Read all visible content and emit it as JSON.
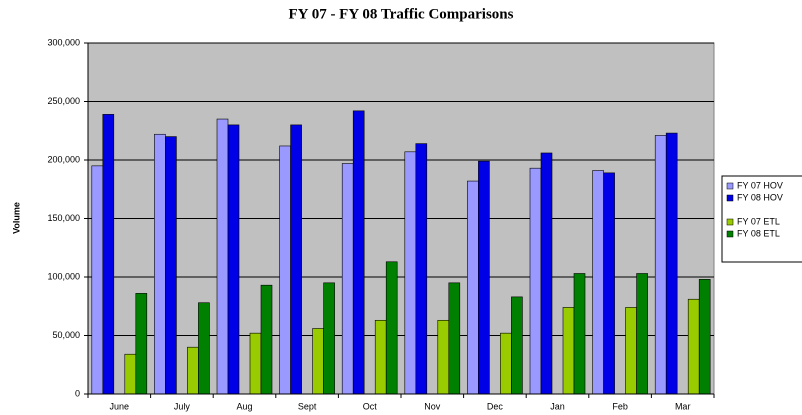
{
  "chart_data": {
    "type": "bar",
    "title": "FY 07 - FY 08 Traffic Comparisons",
    "y_label": "Volume",
    "categories": [
      "June",
      "July",
      "Aug",
      "Sept",
      "Oct",
      "Nov",
      "Dec",
      "Jan",
      "Feb",
      "Mar"
    ],
    "series": [
      {
        "name": "FY 07 HOV",
        "color": "#9999ff",
        "values": [
          195000,
          222000,
          235000,
          212000,
          197000,
          207000,
          182000,
          193000,
          191000,
          221000
        ]
      },
      {
        "name": "FY 08 HOV",
        "color": "#0000e6",
        "values": [
          239000,
          220000,
          230000,
          230000,
          242000,
          214000,
          199000,
          206000,
          189000,
          223000
        ]
      },
      {
        "name": "FY 07 ETL",
        "color": "#99cc00",
        "values": [
          34000,
          40000,
          52000,
          56000,
          63000,
          63000,
          52000,
          74000,
          74000,
          81000
        ]
      },
      {
        "name": "FY 08 ETL",
        "color": "#008000",
        "values": [
          86000,
          78000,
          93000,
          95000,
          113000,
          95000,
          83000,
          103000,
          103000,
          98000
        ]
      }
    ],
    "ylim": [
      0,
      300000
    ],
    "yticks": [
      0,
      {
        "value": 50000,
        "label": "50,000"
      },
      {
        "value": 100000,
        "label": "100,000"
      },
      {
        "value": 150000,
        "label": "150,000"
      },
      {
        "value": 200000,
        "label": "200,000"
      },
      {
        "value": 250000,
        "label": "250,000"
      },
      {
        "value": 300000,
        "label": "300,000"
      }
    ],
    "grid": true,
    "plot_background": "#c0c0c0"
  }
}
